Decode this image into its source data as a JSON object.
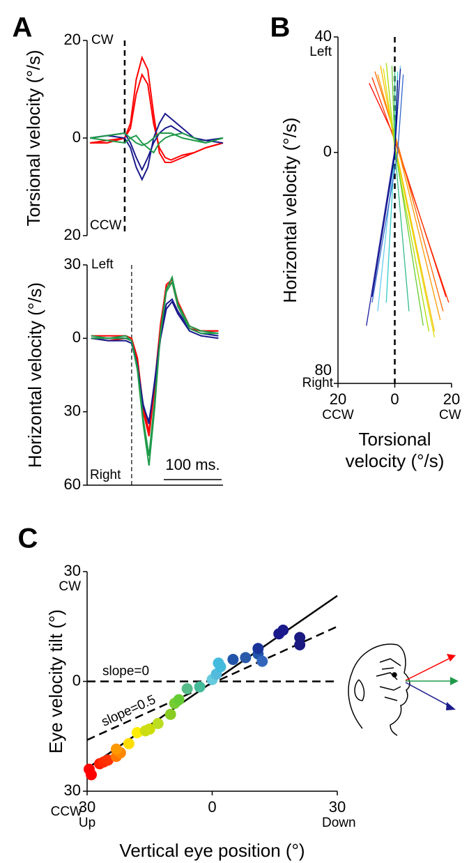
{
  "chart_data": [
    {
      "type": "line",
      "panel": "A",
      "ylabel": "Torsional velocity (°/s)",
      "ylim": [
        -20,
        20
      ],
      "yticks": [
        {
          "value": -20,
          "label": "20"
        },
        0,
        20
      ],
      "top_label": "CW",
      "bottom_label": "CCW",
      "xlim": [
        -65,
        170
      ],
      "vline": 0,
      "x": [
        -60,
        -30,
        0,
        10,
        20,
        30,
        40,
        50,
        60,
        70,
        80,
        100,
        120,
        140,
        170
      ],
      "series": [
        {
          "color": "#ff0000",
          "values": [
            -1,
            -1,
            0,
            3,
            12,
            16.5,
            14,
            5,
            -3,
            -5,
            -5,
            -4,
            -3,
            -2,
            -1
          ]
        },
        {
          "color": "#ff0000",
          "values": [
            -1,
            -0.5,
            0,
            2,
            9,
            13,
            11,
            3,
            -2,
            -4,
            -4.5,
            -3.5,
            -3,
            -2,
            -1
          ]
        },
        {
          "color": "#1a1a8c",
          "values": [
            0,
            0.5,
            0,
            -2,
            -6,
            -8.5,
            -6,
            0,
            3,
            5,
            4,
            2,
            0,
            -0.5,
            -1
          ]
        },
        {
          "color": "#1a1a8c",
          "values": [
            0,
            0.5,
            1,
            -1,
            -4,
            -6.5,
            -4,
            -1,
            1,
            2,
            2.5,
            1,
            0,
            -0.5,
            0
          ]
        },
        {
          "color": "#1f9a4a",
          "values": [
            0,
            0.5,
            1,
            0,
            -1,
            -1.5,
            -1,
            0,
            1,
            1,
            1,
            0,
            -0.5,
            -1,
            0
          ]
        },
        {
          "color": "#1f9a4a",
          "values": [
            0,
            -0.5,
            -1,
            0,
            0.5,
            -1,
            -2,
            -3,
            -1,
            0,
            0.5,
            1,
            0,
            -1,
            0
          ]
        }
      ]
    },
    {
      "type": "line",
      "ylabel": "Horizontal velocity (°/s)",
      "ylim": [
        -60,
        30
      ],
      "yticks": [
        {
          "value": -60,
          "label": "60"
        },
        {
          "value": -30,
          "label": "30"
        },
        0,
        30
      ],
      "top_label": "Left",
      "bottom_label": "Right",
      "xlim": [
        -77,
        158
      ],
      "vline": 0,
      "scale_bar": {
        "value": 100,
        "label": "100 ms."
      },
      "x": [
        -70,
        -40,
        -10,
        0,
        10,
        20,
        30,
        40,
        50,
        60,
        70,
        80,
        100,
        120,
        150
      ],
      "series": [
        {
          "color": "#ff0000",
          "values": [
            0,
            -1,
            0,
            -1,
            -10,
            -30,
            -40,
            -20,
            5,
            22,
            24,
            15,
            5,
            3,
            3
          ]
        },
        {
          "color": "#ff0000",
          "values": [
            1,
            1,
            1,
            0,
            -8,
            -28,
            -38,
            -18,
            6,
            21,
            23,
            13,
            4,
            3,
            3
          ]
        },
        {
          "color": "#1a1a8c",
          "values": [
            0,
            -1,
            -1,
            -2,
            -12,
            -28,
            -34,
            -18,
            0,
            12,
            15,
            10,
            3,
            1,
            0
          ]
        },
        {
          "color": "#1a1a8c",
          "values": [
            0,
            0,
            0,
            -1,
            -11,
            -27,
            -35,
            -17,
            2,
            14,
            16,
            11,
            4,
            2,
            1
          ]
        },
        {
          "color": "#1f9a4a",
          "values": [
            1,
            0,
            0,
            -1,
            -13,
            -35,
            -52,
            -28,
            3,
            20,
            25,
            14,
            5,
            3,
            2
          ]
        },
        {
          "color": "#1f9a4a",
          "values": [
            0,
            0,
            1,
            -1,
            -12,
            -33,
            -48,
            -25,
            2,
            19,
            23,
            13,
            4,
            2,
            2
          ]
        }
      ]
    },
    {
      "type": "line",
      "panel": "B",
      "ylabel": "Horizontal velocity (°/s)",
      "xlabel": [
        "Torsional",
        "velocity (°/s)"
      ],
      "ylim": [
        -80,
        40
      ],
      "yticks": [
        {
          "value": -80,
          "label": "80"
        },
        0,
        40
      ],
      "top_label": "Left",
      "bottom_label": "Right",
      "xlim": [
        -20,
        20
      ],
      "xticks": [
        {
          "value": -20,
          "label": "20"
        },
        0,
        20
      ],
      "left_label": "CCW",
      "right_label": "CW",
      "vline": 0,
      "series": [
        {
          "color": "#ff0000",
          "x": [
            -9,
            0,
            18
          ],
          "values": [
            24,
            5,
            -50
          ]
        },
        {
          "color": "#ff3300",
          "x": [
            -8,
            0,
            19
          ],
          "values": [
            26,
            4,
            -52
          ]
        },
        {
          "color": "#ff6600",
          "x": [
            -7,
            1,
            17
          ],
          "values": [
            28,
            3,
            -55
          ]
        },
        {
          "color": "#ff9900",
          "x": [
            -6,
            1,
            16
          ],
          "values": [
            27,
            2,
            -58
          ]
        },
        {
          "color": "#ffbb00",
          "x": [
            -5,
            0,
            14
          ],
          "values": [
            30,
            3,
            -62
          ]
        },
        {
          "color": "#dddd00",
          "x": [
            -4,
            0,
            14
          ],
          "values": [
            29,
            2,
            -64
          ]
        },
        {
          "color": "#aadd00",
          "x": [
            -3,
            0,
            12
          ],
          "values": [
            31,
            1,
            -62
          ]
        },
        {
          "color": "#66cc33",
          "x": [
            -1,
            0,
            10
          ],
          "values": [
            30,
            2,
            -60
          ]
        },
        {
          "color": "#33bb88",
          "x": [
            0,
            0,
            5
          ],
          "values": [
            28,
            1,
            -55
          ]
        },
        {
          "color": "#33cccc",
          "x": [
            1,
            0,
            -3
          ],
          "values": [
            28,
            2,
            -52
          ]
        },
        {
          "color": "#66ccee",
          "x": [
            2,
            0,
            -6
          ],
          "values": [
            30,
            1,
            -55
          ]
        },
        {
          "color": "#3366cc",
          "x": [
            3,
            1,
            -8
          ],
          "values": [
            27,
            0,
            -52
          ]
        },
        {
          "color": "#1a1a99",
          "x": [
            2,
            0,
            -10
          ],
          "values": [
            29,
            1,
            -60
          ]
        },
        {
          "color": "#000080",
          "x": [
            1,
            0,
            -8
          ],
          "values": [
            25,
            -1,
            -50
          ]
        }
      ]
    },
    {
      "type": "scatter",
      "panel": "C",
      "ylabel": "Eye velocity tilt (°)",
      "xlabel": "Vertical eye position (°)",
      "ylim": [
        -30,
        30
      ],
      "yticks": [
        {
          "value": -30,
          "label": "30"
        },
        0,
        30
      ],
      "top_label": "CW",
      "bottom_label": "CCW",
      "xlim": [
        -30,
        30
      ],
      "xticks": [
        {
          "value": -30,
          "label": "30"
        },
        0,
        30
      ],
      "left_label": "Up",
      "right_label": "Down",
      "x": [
        -29,
        -27,
        -26,
        -25,
        -29.5,
        -23,
        -22,
        -23,
        -20,
        -18,
        -15,
        -13,
        -16,
        -10,
        -9,
        -8,
        -6,
        -3,
        0,
        1,
        2,
        1.5,
        5,
        8,
        11,
        12,
        11,
        16,
        17,
        21,
        21
      ],
      "values": [
        -25.5,
        -22.5,
        -22,
        -21.5,
        -24,
        -20.5,
        -19.5,
        -18.5,
        -17,
        -14,
        -13,
        -11.5,
        -13.5,
        -9,
        -6,
        -5,
        -2,
        -1.5,
        0.5,
        2,
        4,
        5,
        6,
        6.5,
        7.5,
        5.5,
        9,
        13,
        14,
        12,
        10
      ],
      "colors": [
        "#ff0000",
        "#ff1a00",
        "#ff2a00",
        "#ff3300",
        "#ff0000",
        "#ff7700",
        "#ff8800",
        "#ff9900",
        "#ffdd00",
        "#ffee00",
        "#ccdd00",
        "#bbdd22",
        "#ccdd11",
        "#88cc22",
        "#77cc33",
        "#66cc33",
        "#55bb88",
        "#44bb99",
        "#66ccdd",
        "#55bbdd",
        "#44bbdd",
        "#44bbdd",
        "#2255aa",
        "#2a5aaa",
        "#2255aa",
        "#3366bb",
        "#1a3399",
        "#1a1a8c",
        "#1a1a8c",
        "#1a1a80",
        "#1a1a80"
      ],
      "lines": [
        {
          "label": "slope=0",
          "x": [
            -30,
            30
          ],
          "values": [
            0,
            0
          ],
          "dashed": true
        },
        {
          "label": "slope=0.5",
          "x": [
            -30,
            30
          ],
          "values": [
            -16,
            15
          ],
          "dashed": true
        },
        {
          "x": [
            -30,
            30
          ],
          "values": [
            -23.8,
            23.4
          ],
          "dashed": false
        }
      ]
    }
  ]
}
